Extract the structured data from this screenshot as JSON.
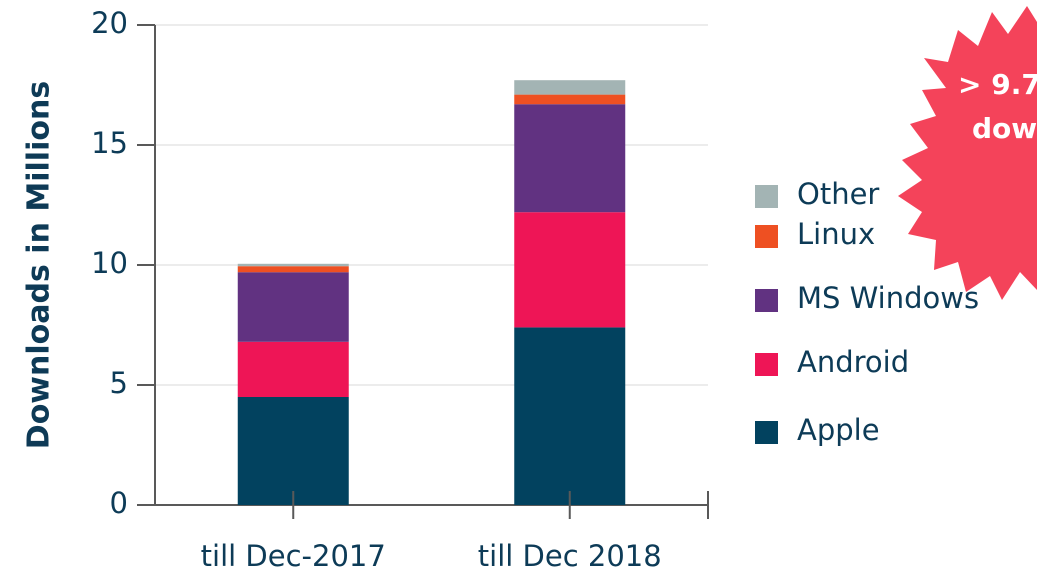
{
  "chart_data": {
    "type": "stacked_bar",
    "y_label": "Downloads in Millions",
    "categories": [
      "till Dec-2017",
      "till Dec 2018"
    ],
    "series": [
      {
        "name": "Apple",
        "color": "#02425f",
        "values": [
          4.5,
          7.4
        ]
      },
      {
        "name": "Android",
        "color": "#ee1556",
        "values": [
          2.3,
          4.8
        ]
      },
      {
        "name": "MS Windows",
        "color": "#613281",
        "values": [
          2.9,
          4.5
        ]
      },
      {
        "name": "Linux",
        "color": "#ee5022",
        "values": [
          0.25,
          0.4
        ]
      },
      {
        "name": "Other",
        "color": "#a3b4b4",
        "values": [
          0.1,
          0.6
        ]
      }
    ],
    "ylim": [
      0,
      20
    ],
    "yticks": [
      0,
      5,
      10,
      15,
      20
    ],
    "grid": true,
    "legend": "right",
    "annotation": [
      "> 9.7",
      "dow"
    ]
  }
}
